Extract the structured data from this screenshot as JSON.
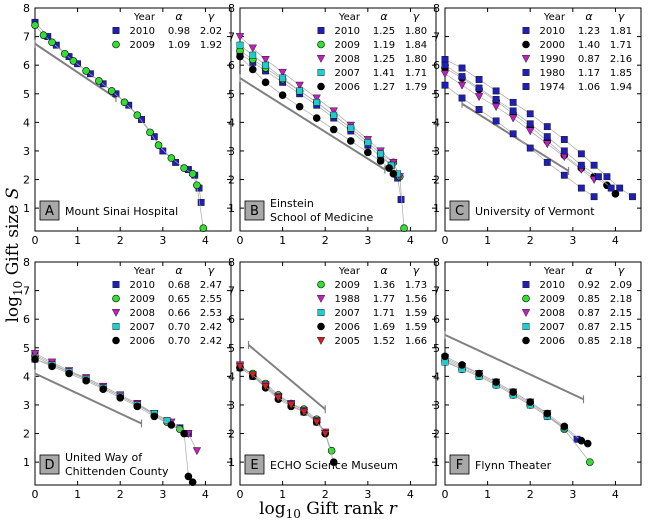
{
  "figure": {
    "ylabel_prefix": "log",
    "ylabel_sub": "10",
    "ylabel_main": " Gift size ",
    "ylabel_var": "S",
    "xlabel_prefix": "log",
    "xlabel_sub": "10",
    "xlabel_main": " Gift rank ",
    "xlabel_var": "r"
  },
  "legend_header": {
    "year": "Year",
    "alpha": "α",
    "gamma": "γ"
  },
  "chart_data": [
    {
      "type": "scatter",
      "panel_letter": "A",
      "panel_name": [
        "Mount Sinai Hospital"
      ],
      "xlim": [
        0,
        4.6
      ],
      "ylim": [
        0.2,
        8
      ],
      "xticks": [
        "0",
        "1",
        "2",
        "3",
        "4"
      ],
      "yticks": [
        "1",
        "2",
        "3",
        "4",
        "5",
        "6",
        "7",
        "8"
      ],
      "series": [
        {
          "name": "2010",
          "alpha": "0.98",
          "gamma": "2.02",
          "marker": "square",
          "color": "#1f1fb4",
          "x": [
            0,
            0.3,
            0.5,
            0.8,
            1.0,
            1.3,
            1.6,
            1.9,
            2.2,
            2.5,
            2.8,
            3.0,
            3.3,
            3.6,
            3.75,
            3.85,
            3.9
          ],
          "y": [
            7.5,
            7.0,
            6.7,
            6.3,
            6.05,
            5.7,
            5.35,
            5.0,
            4.6,
            4.1,
            3.5,
            3.0,
            2.6,
            2.35,
            2.15,
            1.7,
            1.2
          ]
        },
        {
          "name": "2009",
          "alpha": "1.09",
          "gamma": "1.92",
          "marker": "circle",
          "color": "#33dd33",
          "x": [
            0,
            0.2,
            0.4,
            0.7,
            0.9,
            1.2,
            1.5,
            1.8,
            2.1,
            2.4,
            2.7,
            2.9,
            3.2,
            3.5,
            3.7,
            3.8,
            3.95
          ],
          "y": [
            7.4,
            7.05,
            6.8,
            6.4,
            6.15,
            5.8,
            5.45,
            5.1,
            4.7,
            4.25,
            3.65,
            3.2,
            2.75,
            2.4,
            2.2,
            1.8,
            0.3
          ]
        }
      ],
      "fit_line": {
        "x": [
          0,
          1.9
        ],
        "y": [
          6.75,
          4.85
        ]
      }
    },
    {
      "type": "scatter",
      "panel_letter": "B",
      "panel_name": [
        "Einstein",
        "School of Medicine"
      ],
      "xlim": [
        0,
        4.6
      ],
      "ylim": [
        0.2,
        8
      ],
      "xticks": [
        "0",
        "1",
        "2",
        "3",
        "4"
      ],
      "yticks": [
        "1",
        "2",
        "3",
        "4",
        "5",
        "6",
        "7",
        "8"
      ],
      "series": [
        {
          "name": "2010",
          "alpha": "1.25",
          "gamma": "1.80",
          "marker": "square",
          "color": "#1f1fb4",
          "x": [
            0,
            0.3,
            0.6,
            1.0,
            1.4,
            1.8,
            2.2,
            2.6,
            3.0,
            3.3,
            3.55,
            3.7,
            3.78
          ],
          "y": [
            6.4,
            6.1,
            5.8,
            5.4,
            5.0,
            4.6,
            4.15,
            3.7,
            3.2,
            2.8,
            2.5,
            2.05,
            1.3
          ]
        },
        {
          "name": "2009",
          "alpha": "1.19",
          "gamma": "1.84",
          "marker": "circle",
          "color": "#33dd33",
          "x": [
            0,
            0.3,
            0.6,
            1.0,
            1.4,
            1.8,
            2.2,
            2.6,
            3.0,
            3.3,
            3.6,
            3.75,
            3.85
          ],
          "y": [
            6.5,
            6.2,
            5.9,
            5.5,
            5.1,
            4.7,
            4.25,
            3.8,
            3.3,
            2.9,
            2.6,
            2.1,
            0.3
          ]
        },
        {
          "name": "2008",
          "alpha": "1.25",
          "gamma": "1.80",
          "marker": "triangle",
          "color": "#bb22bb",
          "x": [
            0,
            0.3,
            0.6,
            1.0,
            1.4,
            1.8,
            2.2,
            2.6,
            3.0,
            3.3,
            3.6,
            3.75
          ],
          "y": [
            7.0,
            6.6,
            6.2,
            5.75,
            5.3,
            4.85,
            4.4,
            3.9,
            3.4,
            3.0,
            2.6,
            2.1
          ]
        },
        {
          "name": "2007",
          "alpha": "1.41",
          "gamma": "1.71",
          "marker": "square",
          "color": "#22cccc",
          "x": [
            0,
            0.3,
            0.6,
            1.0,
            1.4,
            1.8,
            2.2,
            2.6,
            3.0,
            3.3,
            3.55,
            3.7
          ],
          "y": [
            6.7,
            6.35,
            6.0,
            5.55,
            5.1,
            4.7,
            4.25,
            3.8,
            3.3,
            2.9,
            2.5,
            2.2
          ]
        },
        {
          "name": "2006",
          "alpha": "1.27",
          "gamma": "1.79",
          "marker": "circle",
          "color": "#000000",
          "x": [
            0,
            0.3,
            0.6,
            1.0,
            1.4,
            1.8,
            2.2,
            2.6,
            3.0,
            3.3,
            3.5,
            3.6
          ],
          "y": [
            6.3,
            5.85,
            5.4,
            4.95,
            4.55,
            4.15,
            3.75,
            3.35,
            2.95,
            2.65,
            2.4,
            2.2
          ]
        }
      ],
      "fit_line": {
        "x": [
          0,
          3.4
        ],
        "y": [
          5.55,
          2.35
        ]
      }
    },
    {
      "type": "scatter",
      "panel_letter": "C",
      "panel_name": [
        "University of Vermont"
      ],
      "xlim": [
        0,
        4.6
      ],
      "ylim": [
        0.2,
        8
      ],
      "xticks": [
        "0",
        "1",
        "2",
        "3",
        "4"
      ],
      "yticks": [
        "1",
        "2",
        "3",
        "4",
        "5",
        "6",
        "7",
        "8"
      ],
      "series": [
        {
          "name": "2010",
          "alpha": "1.23",
          "gamma": "1.81",
          "marker": "square",
          "color": "#1f1fb4",
          "x": [
            0,
            0.4,
            0.8,
            1.2,
            1.6,
            2.0,
            2.4,
            2.8,
            3.2,
            3.5,
            3.8,
            4.1,
            4.4
          ],
          "y": [
            6.2,
            5.9,
            5.5,
            5.1,
            4.7,
            4.3,
            3.85,
            3.4,
            2.9,
            2.5,
            2.1,
            1.7,
            1.4
          ]
        },
        {
          "name": "2000",
          "alpha": "1.40",
          "gamma": "1.71",
          "marker": "circle",
          "color": "#000000",
          "x": [
            0,
            0.4,
            0.8,
            1.2,
            1.6,
            2.0,
            2.4,
            2.8,
            3.2,
            3.5,
            3.8,
            4.0
          ],
          "y": [
            5.9,
            5.55,
            5.15,
            4.75,
            4.3,
            3.85,
            3.35,
            2.85,
            2.4,
            2.1,
            1.8,
            1.5
          ]
        },
        {
          "name": "1990",
          "alpha": "0.87",
          "gamma": "2.16",
          "marker": "triangle",
          "color": "#bb22bb",
          "x": [
            0,
            0.4,
            0.8,
            1.2,
            1.6,
            2.0,
            2.4,
            2.8,
            3.2,
            3.5
          ],
          "y": [
            5.7,
            5.3,
            4.9,
            4.55,
            4.15,
            3.7,
            3.25,
            2.8,
            2.35,
            2.0
          ]
        },
        {
          "name": "1980",
          "alpha": "1.17",
          "gamma": "1.85",
          "marker": "square",
          "color": "#1f1fb4",
          "x": [
            0,
            0.4,
            0.8,
            1.2,
            1.6,
            2.0,
            2.4,
            2.8,
            3.2,
            3.6,
            3.9
          ],
          "y": [
            6.0,
            5.6,
            5.2,
            4.8,
            4.4,
            3.95,
            3.5,
            3.0,
            2.5,
            2.1,
            1.7
          ]
        },
        {
          "name": "1974",
          "alpha": "1.06",
          "gamma": "1.94",
          "marker": "square",
          "color": "#1f1fb4",
          "x": [
            0,
            0.4,
            0.8,
            1.2,
            1.6,
            2.0,
            2.4,
            2.8,
            3.2,
            3.5
          ],
          "y": [
            5.3,
            4.85,
            4.45,
            4.05,
            3.6,
            3.1,
            2.6,
            2.15,
            1.7,
            1.4
          ]
        }
      ],
      "fit_line": {
        "x": [
          0.4,
          2.9
        ],
        "y": [
          4.65,
          2.3
        ]
      }
    },
    {
      "type": "scatter",
      "panel_letter": "D",
      "panel_name": [
        "United Way of",
        "Chittenden County"
      ],
      "xlim": [
        0,
        4.6
      ],
      "ylim": [
        0.2,
        8
      ],
      "xticks": [
        "0",
        "1",
        "2",
        "3",
        "4"
      ],
      "yticks": [
        "1",
        "2",
        "3",
        "4",
        "5",
        "6",
        "7",
        "8"
      ],
      "series": [
        {
          "name": "2010",
          "alpha": "0.68",
          "gamma": "2.47",
          "marker": "square",
          "color": "#1f1fb4",
          "x": [
            0,
            0.4,
            0.8,
            1.2,
            1.6,
            2.0,
            2.4,
            2.8,
            3.1,
            3.4,
            3.6
          ],
          "y": [
            4.75,
            4.45,
            4.15,
            3.95,
            3.65,
            3.35,
            3.05,
            2.7,
            2.45,
            2.2,
            2.0
          ]
        },
        {
          "name": "2009",
          "alpha": "0.65",
          "gamma": "2.55",
          "marker": "circle",
          "color": "#33dd33",
          "x": [
            0,
            0.4,
            0.8,
            1.2,
            1.6,
            2.0,
            2.4,
            2.8,
            3.1,
            3.4
          ],
          "y": [
            4.7,
            4.4,
            4.15,
            3.9,
            3.6,
            3.3,
            3.0,
            2.65,
            2.4,
            2.15
          ]
        },
        {
          "name": "2008",
          "alpha": "0.66",
          "gamma": "2.53",
          "marker": "triangle",
          "color": "#bb22bb",
          "x": [
            0,
            0.4,
            0.8,
            1.2,
            1.6,
            2.0,
            2.4,
            2.8,
            3.2,
            3.6,
            3.8
          ],
          "y": [
            4.8,
            4.5,
            4.2,
            3.95,
            3.65,
            3.35,
            3.05,
            2.7,
            2.4,
            2.0,
            1.4
          ]
        },
        {
          "name": "2007",
          "alpha": "0.70",
          "gamma": "2.42",
          "marker": "square",
          "color": "#22cccc",
          "x": [
            0,
            0.4,
            0.8,
            1.2,
            1.6,
            2.0,
            2.4,
            2.8,
            3.1
          ],
          "y": [
            4.6,
            4.4,
            4.15,
            3.9,
            3.6,
            3.3,
            3.0,
            2.7,
            2.45
          ]
        },
        {
          "name": "2006",
          "alpha": "0.70",
          "gamma": "2.42",
          "marker": "circle",
          "color": "#000000",
          "x": [
            0,
            0.4,
            0.8,
            1.2,
            1.6,
            2.0,
            2.4,
            2.8,
            3.2,
            3.5,
            3.6,
            3.7
          ],
          "y": [
            4.6,
            4.35,
            4.1,
            3.85,
            3.55,
            3.25,
            2.95,
            2.6,
            2.3,
            2.0,
            0.5,
            0.3
          ]
        }
      ],
      "fit_line": {
        "x": [
          0,
          2.5
        ],
        "y": [
          4.1,
          2.35
        ]
      }
    },
    {
      "type": "scatter",
      "panel_letter": "E",
      "panel_name": [
        "ECHO Science Museum"
      ],
      "xlim": [
        0,
        4.6
      ],
      "ylim": [
        0.2,
        8
      ],
      "xticks": [
        "0",
        "1",
        "2",
        "3",
        "4"
      ],
      "yticks": [
        "1",
        "2",
        "3",
        "4",
        "5",
        "6",
        "7",
        "8"
      ],
      "series": [
        {
          "name": "2009",
          "alpha": "1.36",
          "gamma": "1.73",
          "marker": "circle",
          "color": "#33dd33",
          "x": [
            0,
            0.3,
            0.6,
            0.9,
            1.2,
            1.5,
            1.8,
            2.0,
            2.15
          ],
          "y": [
            4.3,
            4.1,
            3.75,
            3.35,
            3.05,
            2.85,
            2.5,
            2.0,
            1.4
          ]
        },
        {
          "name": "1988",
          "alpha": "1.77",
          "gamma": "1.56",
          "marker": "triangle",
          "color": "#bb22bb",
          "x": [
            0,
            0.3,
            0.6,
            0.9,
            1.2,
            1.5,
            1.8,
            2.0
          ],
          "y": [
            4.4,
            4.05,
            3.7,
            3.3,
            3.05,
            2.8,
            2.45,
            2.05
          ]
        },
        {
          "name": "2007",
          "alpha": "1.71",
          "gamma": "1.59",
          "marker": "square",
          "color": "#22cccc",
          "x": [
            0,
            0.3,
            0.6,
            0.9,
            1.2,
            1.5,
            1.8
          ],
          "y": [
            4.3,
            4.0,
            3.65,
            3.25,
            3.0,
            2.75,
            2.4
          ]
        },
        {
          "name": "2006",
          "alpha": "1.69",
          "gamma": "1.59",
          "marker": "circle",
          "color": "#000000",
          "x": [
            0,
            0.3,
            0.6,
            0.9,
            1.2,
            1.5,
            1.8,
            2.0,
            2.2
          ],
          "y": [
            4.3,
            4.0,
            3.6,
            3.2,
            2.95,
            2.75,
            2.4,
            2.0,
            1.0
          ]
        },
        {
          "name": "2005",
          "alpha": "1.52",
          "gamma": "1.66",
          "marker": "triangle",
          "color": "#cc2222",
          "x": [
            0,
            0.3,
            0.6,
            0.9,
            1.2,
            1.5,
            1.8,
            2.0
          ],
          "y": [
            4.35,
            4.05,
            3.65,
            3.25,
            3.0,
            2.75,
            2.4,
            2.0
          ]
        }
      ],
      "fit_line": {
        "x": [
          0.2,
          2.0
        ],
        "y": [
          5.1,
          2.85
        ]
      }
    },
    {
      "type": "scatter",
      "panel_letter": "F",
      "panel_name": [
        "Flynn Theater"
      ],
      "xlim": [
        0,
        4.6
      ],
      "ylim": [
        0.2,
        8
      ],
      "xticks": [
        "0",
        "1",
        "2",
        "3",
        "4"
      ],
      "yticks": [
        "1",
        "2",
        "3",
        "4",
        "5",
        "6",
        "7",
        "8"
      ],
      "series": [
        {
          "name": "2010",
          "alpha": "0.92",
          "gamma": "2.09",
          "marker": "square",
          "color": "#1f1fb4",
          "x": [
            0,
            0.4,
            0.8,
            1.2,
            1.6,
            2.0,
            2.4,
            2.8,
            3.1
          ],
          "y": [
            4.6,
            4.3,
            4.05,
            3.75,
            3.4,
            3.05,
            2.65,
            2.2,
            1.8
          ]
        },
        {
          "name": "2009",
          "alpha": "0.85",
          "gamma": "2.18",
          "marker": "circle",
          "color": "#33dd33",
          "x": [
            0,
            0.4,
            0.8,
            1.2,
            1.6,
            2.0,
            2.4,
            2.8,
            3.4
          ],
          "y": [
            4.55,
            4.25,
            4.0,
            3.7,
            3.35,
            3.0,
            2.6,
            2.15,
            1.0
          ]
        },
        {
          "name": "2008",
          "alpha": "0.87",
          "gamma": "2.15",
          "marker": "triangle",
          "color": "#bb22bb",
          "x": [
            0,
            0.4,
            0.8,
            1.2,
            1.6,
            2.0,
            2.4
          ],
          "y": [
            4.65,
            4.35,
            4.1,
            3.8,
            3.45,
            3.1,
            2.7
          ]
        },
        {
          "name": "2007",
          "alpha": "0.87",
          "gamma": "2.15",
          "marker": "square",
          "color": "#22cccc",
          "x": [
            0,
            0.4,
            0.8,
            1.2,
            1.6,
            2.0,
            2.4,
            2.8
          ],
          "y": [
            4.5,
            4.25,
            4.0,
            3.7,
            3.35,
            3.0,
            2.6,
            2.2
          ]
        },
        {
          "name": "2006",
          "alpha": "0.85",
          "gamma": "2.18",
          "marker": "circle",
          "color": "#000000",
          "x": [
            0,
            0.4,
            0.8,
            1.2,
            1.6,
            2.0,
            2.4,
            2.8,
            3.2,
            3.35
          ],
          "y": [
            4.7,
            4.4,
            4.1,
            3.8,
            3.45,
            3.1,
            2.7,
            2.25,
            1.75,
            1.65
          ]
        }
      ],
      "fit_line": {
        "x": [
          0,
          3.25
        ],
        "y": [
          5.45,
          3.2
        ]
      }
    }
  ]
}
